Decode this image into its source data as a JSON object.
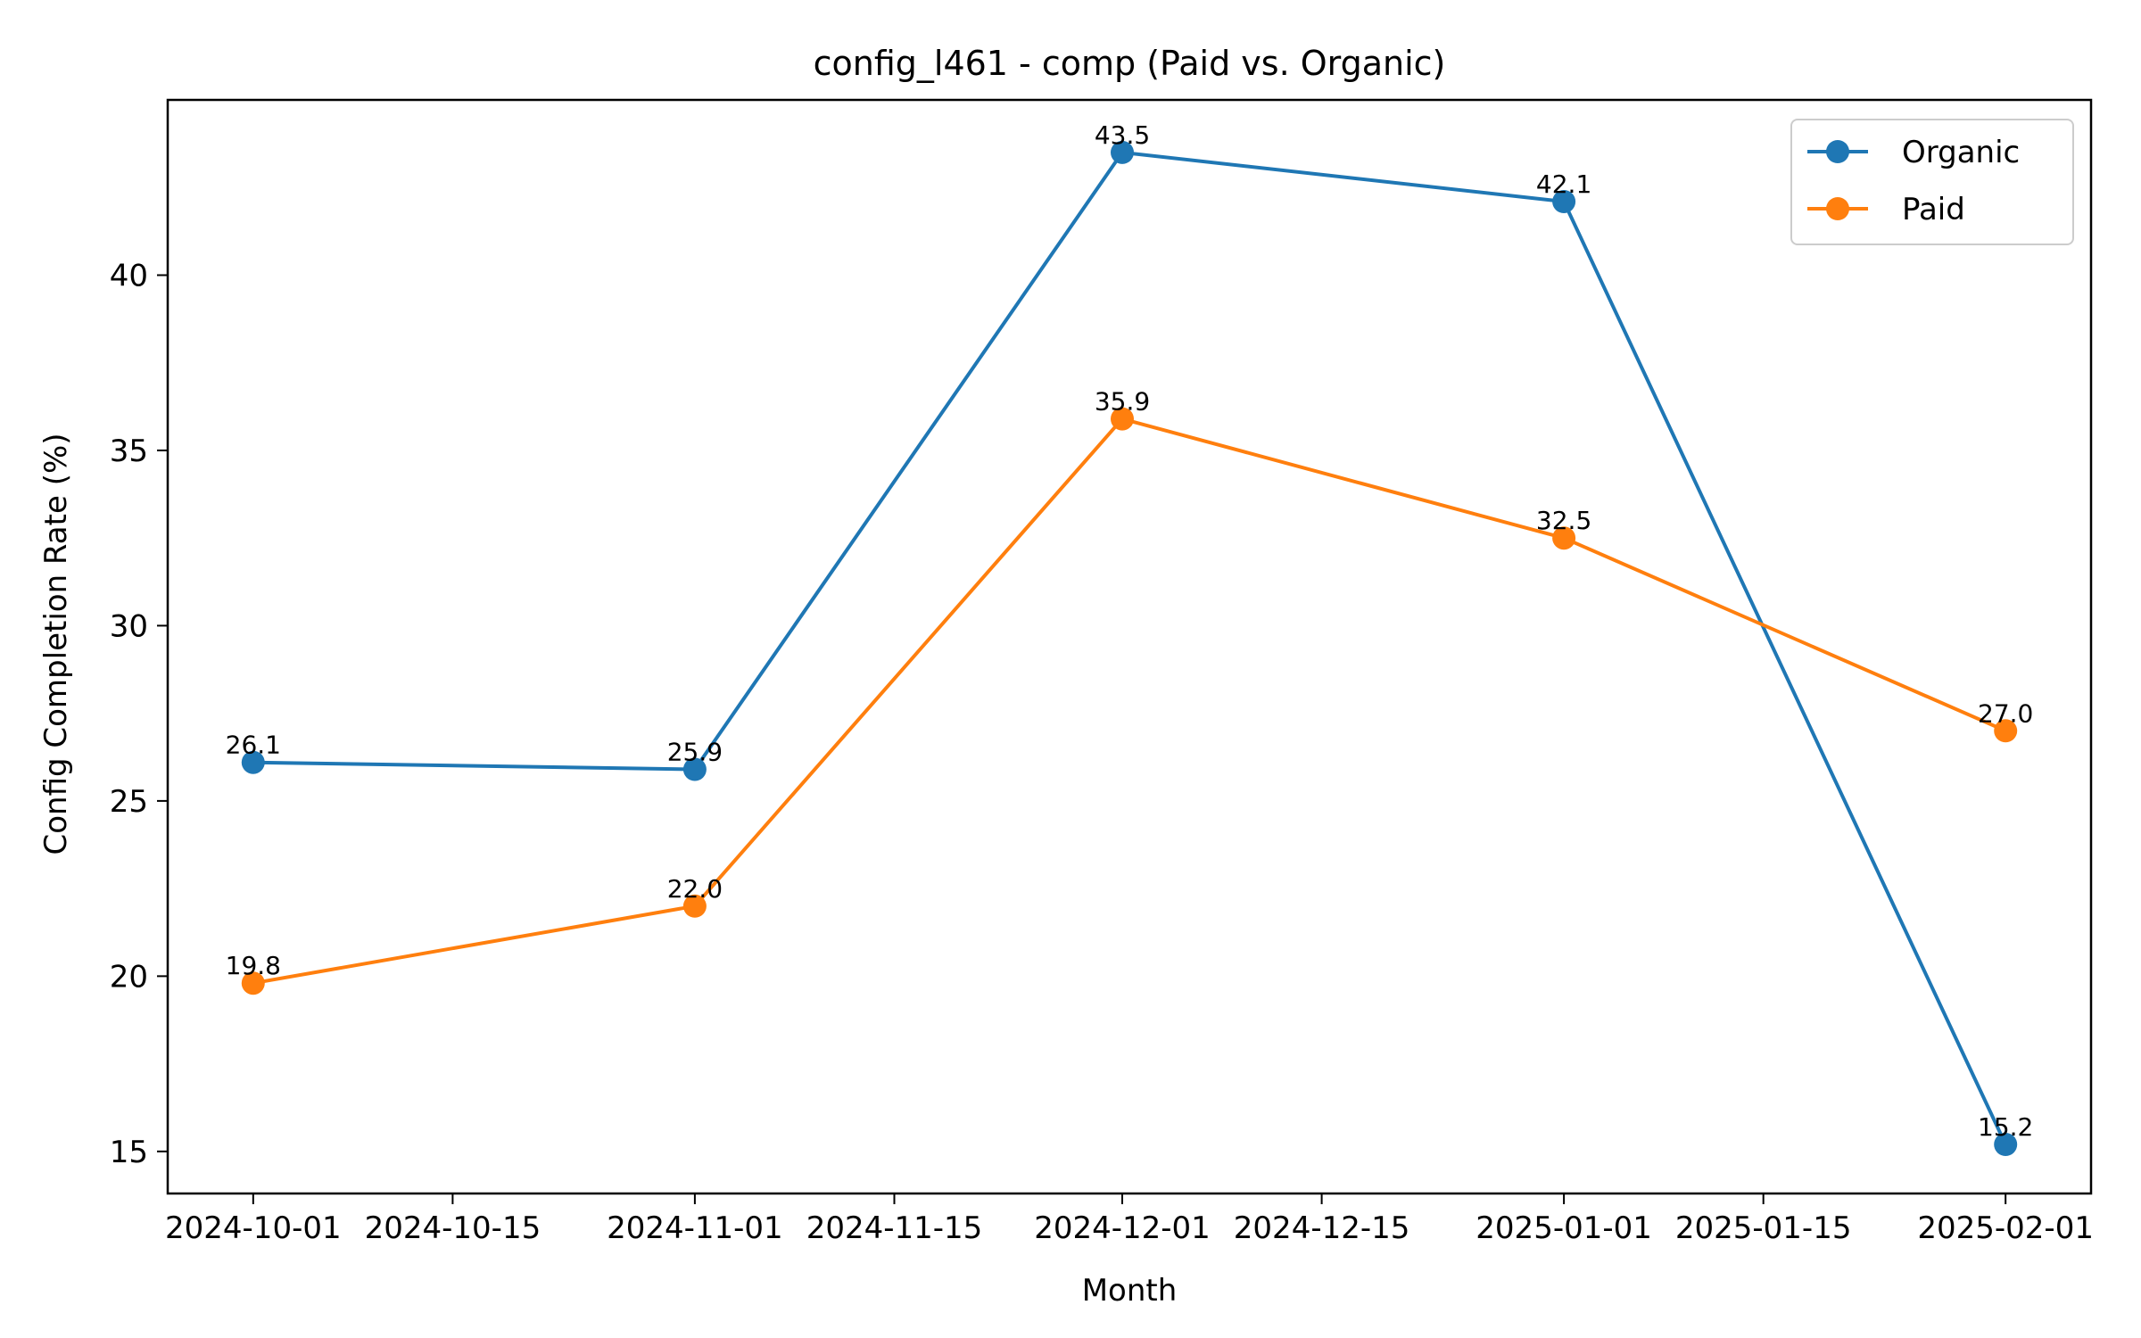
{
  "chart_data": {
    "type": "line",
    "title": "config_l461 - comp (Paid vs. Organic)",
    "xlabel": "Month",
    "ylabel": "Config Completion Rate (%)",
    "x": [
      "2024-10-01",
      "2024-11-01",
      "2024-12-01",
      "2025-01-01",
      "2025-02-01"
    ],
    "x_ticks": [
      "2024-10-01",
      "2024-10-15",
      "2024-11-01",
      "2024-11-15",
      "2024-12-01",
      "2024-12-15",
      "2025-01-01",
      "2025-01-15",
      "2025-02-01"
    ],
    "y_ticks": [
      15,
      20,
      25,
      30,
      35,
      40
    ],
    "xlim": [
      "2024-09-25",
      "2025-02-07"
    ],
    "ylim": [
      13.8,
      45.0
    ],
    "grid": false,
    "legend_position": "top-right",
    "series": [
      {
        "name": "Organic",
        "color": "#1f77b4",
        "values": [
          26.1,
          25.9,
          43.5,
          42.1,
          15.2
        ],
        "labels": [
          "26.1",
          "25.9",
          "43.5",
          "42.1",
          "15.2"
        ]
      },
      {
        "name": "Paid",
        "color": "#ff7f0e",
        "values": [
          19.8,
          22.0,
          35.9,
          32.5,
          27.0
        ],
        "labels": [
          "19.8",
          "22.0",
          "35.9",
          "32.5",
          "27.0"
        ]
      }
    ]
  }
}
